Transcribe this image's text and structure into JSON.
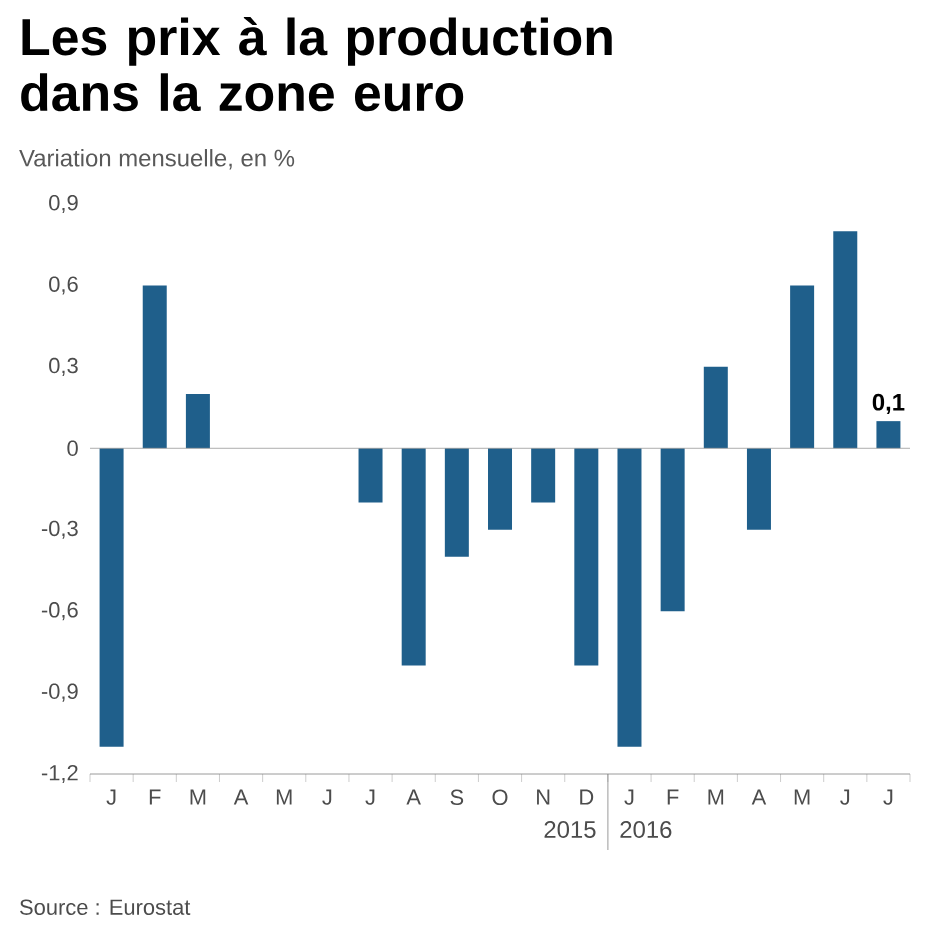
{
  "chart_data": {
    "type": "bar",
    "title": "Les prix à la production dans la zone euro",
    "subtitle": "Variation mensuelle, en %",
    "categories": [
      "J",
      "F",
      "M",
      "A",
      "M",
      "J",
      "J",
      "A",
      "S",
      "O",
      "N",
      "D",
      "J",
      "F",
      "M",
      "A",
      "M",
      "J",
      "J"
    ],
    "values": [
      -1.1,
      0.6,
      0.2,
      0,
      0,
      0,
      -0.2,
      -0.8,
      -0.4,
      -0.3,
      -0.2,
      -0.8,
      -1.1,
      -0.6,
      0.3,
      -0.3,
      0.6,
      0.8,
      0.1
    ],
    "value_labels": [
      null,
      null,
      null,
      null,
      null,
      null,
      null,
      null,
      null,
      null,
      null,
      null,
      null,
      null,
      null,
      null,
      null,
      null,
      "0,1"
    ],
    "color": "#1f5f8b",
    "ylim": [
      -1.2,
      0.9
    ],
    "yticks": [
      {
        "value": -1.2,
        "label": "-1,2"
      },
      {
        "value": -0.9,
        "label": "-0,9"
      },
      {
        "value": -0.6,
        "label": "-0,6"
      },
      {
        "value": -0.3,
        "label": "-0,3"
      },
      0,
      {
        "value": 0.3,
        "label": "0,3"
      },
      {
        "value": 0.6,
        "label": "0,6"
      },
      {
        "value": 0.9,
        "label": "0,9"
      }
    ],
    "annotations": [
      "2015",
      "2016",
      "Source : Eurostat"
    ]
  }
}
